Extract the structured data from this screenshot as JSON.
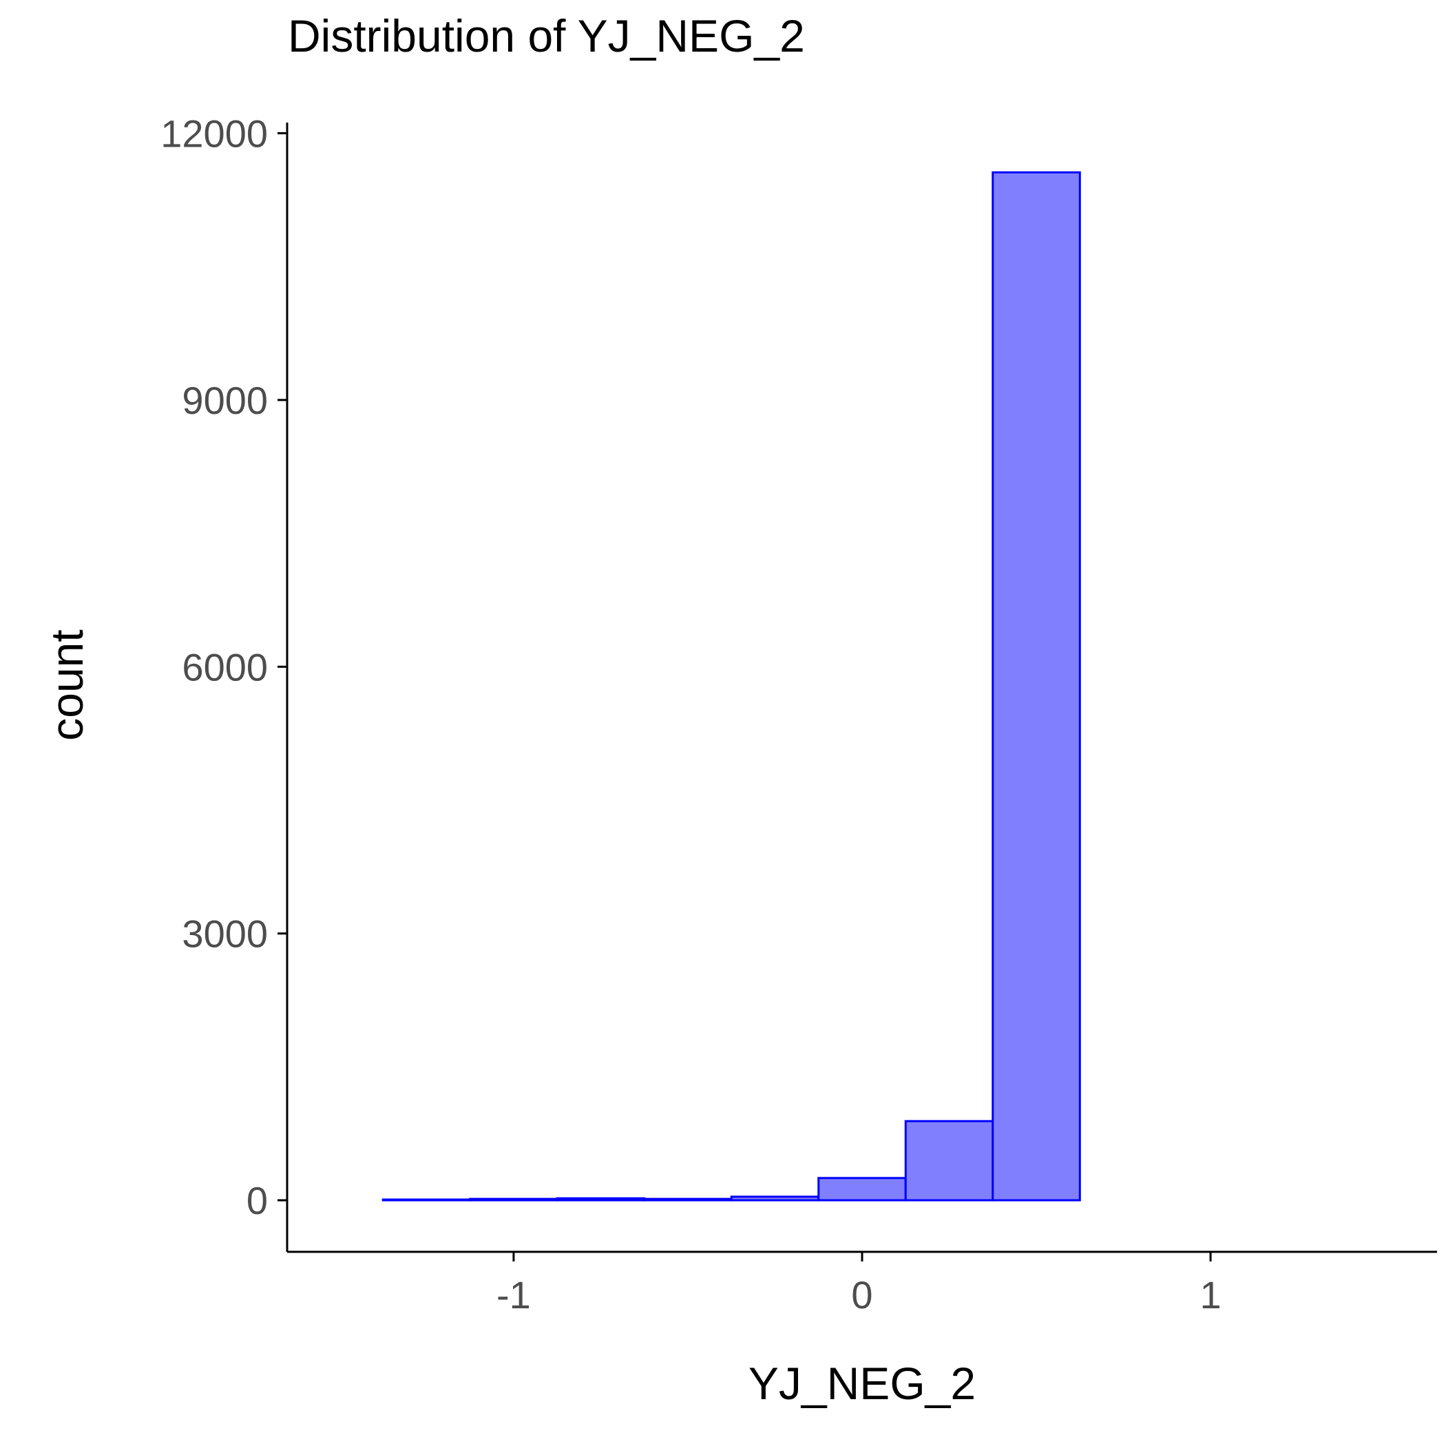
{
  "chart_data": {
    "type": "bar",
    "title": "Distribution of YJ_NEG_2",
    "xlabel": "YJ_NEG_2",
    "ylabel": "count",
    "xlim": [
      -1.65,
      1.65
    ],
    "ylim": [
      -580,
      12120
    ],
    "x_ticks": [
      -1,
      0,
      1
    ],
    "x_tick_labels": [
      "-1",
      "0",
      "1"
    ],
    "y_ticks": [
      0,
      3000,
      6000,
      9000,
      12000
    ],
    "y_tick_labels": [
      "0",
      "3000",
      "6000",
      "9000",
      "12000"
    ],
    "bin_width": 0.25,
    "bins": [
      {
        "x0": -1.375,
        "x1": -1.125,
        "count": 8
      },
      {
        "x0": -1.125,
        "x1": -0.875,
        "count": 15
      },
      {
        "x0": -0.875,
        "x1": -0.625,
        "count": 22
      },
      {
        "x0": -0.625,
        "x1": -0.375,
        "count": 15
      },
      {
        "x0": -0.375,
        "x1": -0.125,
        "count": 40
      },
      {
        "x0": -0.125,
        "x1": 0.125,
        "count": 250
      },
      {
        "x0": 0.125,
        "x1": 0.375,
        "count": 890
      },
      {
        "x0": 0.375,
        "x1": 0.625,
        "count": 11560
      },
      {
        "x0": 0.625,
        "x1": 0.875,
        "count": 0
      },
      {
        "x0": 0.875,
        "x1": 1.125,
        "count": 0
      },
      {
        "x0": 1.125,
        "x1": 1.375,
        "count": 0
      }
    ],
    "fill_color": "#8080ff",
    "stroke_color": "#0000ff",
    "grid": false,
    "legend": "none"
  }
}
